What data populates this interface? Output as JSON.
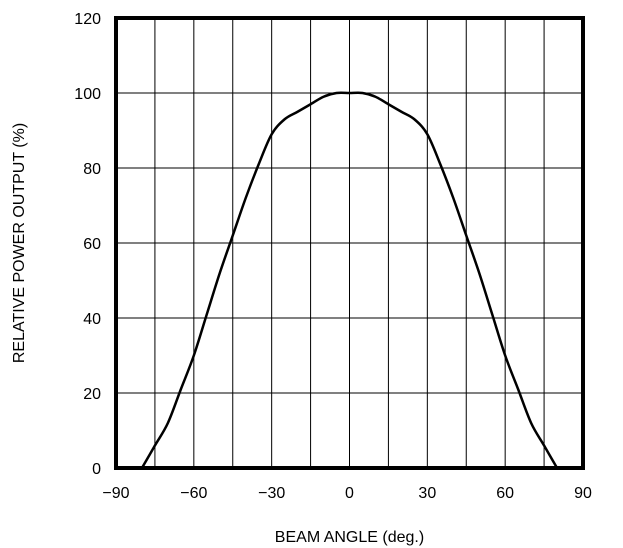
{
  "chart_data": {
    "type": "line",
    "xlabel": "BEAM ANGLE (deg.)",
    "ylabel": "RELATIVE POWER OUTPUT (%)",
    "xlim": [
      -90,
      90
    ],
    "ylim": [
      0,
      120
    ],
    "x_ticks": [
      -90,
      -60,
      -30,
      0,
      30,
      60,
      90
    ],
    "x_tick_labels": [
      "−90",
      "−60",
      "−30",
      "0",
      "30",
      "60",
      "90"
    ],
    "y_ticks": [
      0,
      20,
      40,
      60,
      80,
      100,
      120
    ],
    "y_tick_labels": [
      "0",
      "20",
      "40",
      "60",
      "80",
      "100",
      "120"
    ],
    "grid": true,
    "x_gridlines_every": 15,
    "y_gridlines_every": 20,
    "series": [
      {
        "x": [
          -80,
          -75,
          -70,
          -65,
          -60,
          -55,
          -50,
          -45,
          -40,
          -35,
          -30,
          -25,
          -20,
          -15,
          -10,
          -5,
          0,
          5,
          10,
          15,
          20,
          25,
          30,
          35,
          40,
          45,
          50,
          55,
          60,
          65,
          70,
          75,
          80
        ],
        "y": [
          0,
          6,
          12,
          21,
          30,
          41,
          52,
          62,
          72,
          81,
          89,
          93,
          95,
          97,
          99,
          100,
          100,
          100,
          99,
          97,
          95,
          93,
          89,
          81,
          72,
          62,
          52,
          41,
          30,
          21,
          12,
          6,
          0
        ]
      }
    ]
  }
}
